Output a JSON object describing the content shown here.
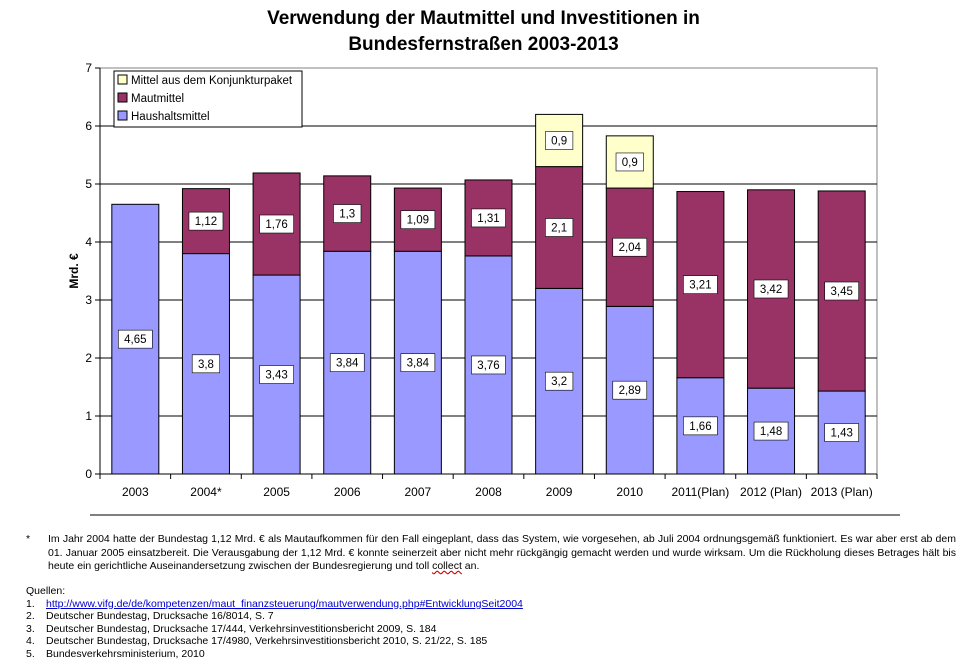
{
  "title_line1": "Verwendung der Mautmittel und Investitionen in",
  "title_line2": "Bundesfernstraßen 2003-2013",
  "chart_data": {
    "type": "bar",
    "stacked": true,
    "ylabel": "Mrd. €",
    "ylim": [
      0,
      7
    ],
    "yticks": [
      0,
      1,
      2,
      3,
      4,
      5,
      6,
      7
    ],
    "grid": true,
    "legend_position": "top-left",
    "categories": [
      "2003",
      "2004*",
      "2005",
      "2006",
      "2007",
      "2008",
      "2009",
      "2010",
      "2011(Plan)",
      "2012 (Plan)",
      "2013 (Plan)"
    ],
    "series": [
      {
        "name": "Haushaltsmittel",
        "color": "#9999ff",
        "values": [
          4.65,
          3.8,
          3.43,
          3.84,
          3.84,
          3.76,
          3.2,
          2.89,
          1.66,
          1.48,
          1.43
        ],
        "labels": [
          "4,65",
          "3,8",
          "3,43",
          "3,84",
          "3,84",
          "3,76",
          "3,2",
          "2,89",
          "1,66",
          "1,48",
          "1,43"
        ]
      },
      {
        "name": "Mautmittel",
        "color": "#993366",
        "values": [
          0,
          1.12,
          1.76,
          1.3,
          1.09,
          1.31,
          2.1,
          2.04,
          3.21,
          3.42,
          3.45
        ],
        "labels": [
          "",
          "1,12",
          "1,76",
          "1,3",
          "1,09",
          "1,31",
          "2,1",
          "2,04",
          "3,21",
          "3,42",
          "3,45"
        ]
      },
      {
        "name": "Mittel aus dem Konjunkturpaket",
        "color": "#ffffcc",
        "values": [
          0,
          0,
          0,
          0,
          0,
          0,
          0.9,
          0.9,
          0,
          0,
          0
        ],
        "labels": [
          "",
          "",
          "",
          "",
          "",
          "",
          "0,9",
          "0,9",
          "",
          "",
          ""
        ]
      }
    ]
  },
  "footnote": {
    "marker": "*",
    "text_before": "Im Jahr 2004 hatte der Bundestag 1,12 Mrd. € als Mautaufkommen für den Fall eingeplant, dass das System, wie vorgesehen, ab Juli 2004 ordnungsgemäß funktioniert. Es war aber erst ab dem 01. Januar 2005 einsatzbereit. Die Verausgabung der 1,12 Mrd. € konnte seinerzeit aber nicht mehr rückgängig gemacht werden und wurde wirksam. Um die Rückholung dieses Betrages hält bis heute ein gerichtliche Auseinandersetzung zwischen der Bundesregierung und toll ",
    "text_marked": "collect",
    "text_after": " an."
  },
  "sources": {
    "heading": "Quellen:",
    "items": [
      {
        "num": "1.",
        "text": "http://www.vifg.de/de/kompetenzen/maut_finanzsteuerung/mautverwendung.php#EntwicklungSeit2004"
      },
      {
        "num": "2.",
        "text": "Deutscher Bundestag, Drucksache 16/8014, S. 7"
      },
      {
        "num": "3.",
        "text": "Deutscher Bundestag, Drucksache 17/444, Verkehrsinvestitionsbericht 2009, S. 184"
      },
      {
        "num": "4.",
        "text": "Deutscher Bundestag, Drucksache 17/4980, Verkehrsinvestitionsbericht 2010, S. 21/22, S. 185"
      },
      {
        "num": "5.",
        "text": "Bundesverkehrsministerium, 2010"
      }
    ]
  }
}
